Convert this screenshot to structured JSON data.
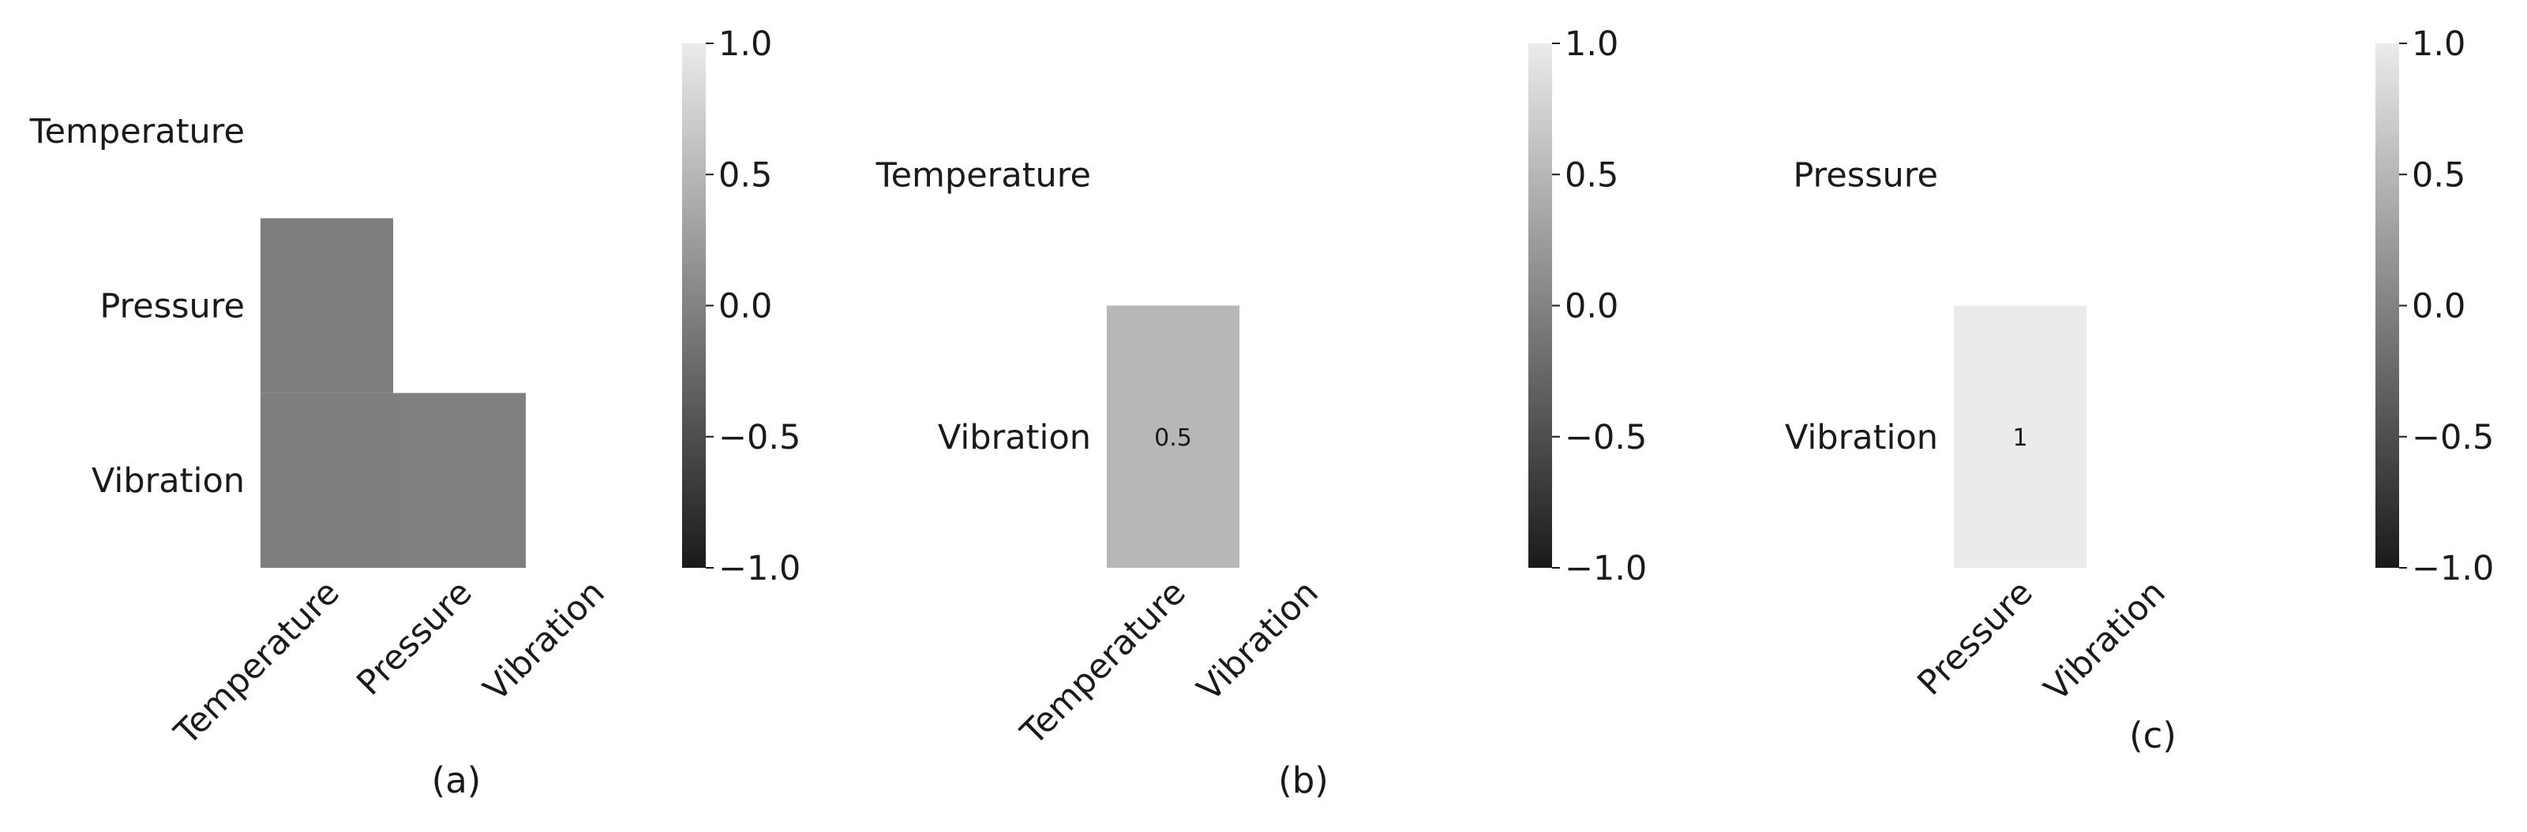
{
  "chart_data": [
    {
      "type": "heatmap",
      "caption": "(a)",
      "rows": [
        "Temperature",
        "Pressure",
        "Vibration"
      ],
      "columns": [
        "Temperature",
        "Pressure",
        "Vibration"
      ],
      "cells": [
        {
          "row": "Pressure",
          "col": "Temperature",
          "value": -0.04
        },
        {
          "row": "Vibration",
          "col": "Temperature",
          "value": -0.04
        },
        {
          "row": "Vibration",
          "col": "Pressure",
          "value": -0.03
        }
      ],
      "annotations": false,
      "colorbar": {
        "range": [
          -1.0,
          1.0
        ],
        "ticks": [
          "1.0",
          "0.5",
          "0.0",
          "−0.5",
          "−1.0"
        ],
        "colormap": "gray"
      }
    },
    {
      "type": "heatmap",
      "caption": "(b)",
      "rows": [
        "Temperature",
        "Vibration"
      ],
      "columns": [
        "Temperature",
        "Vibration"
      ],
      "cells": [
        {
          "row": "Vibration",
          "col": "Temperature",
          "value": 0.5,
          "label": "0.5"
        }
      ],
      "annotations": true,
      "colorbar": {
        "range": [
          -1.0,
          1.0
        ],
        "ticks": [
          "1.0",
          "0.5",
          "0.0",
          "−0.5",
          "−1.0"
        ],
        "colormap": "gray"
      }
    },
    {
      "type": "heatmap",
      "caption": "(c)",
      "rows": [
        "Pressure",
        "Vibration"
      ],
      "columns": [
        "Pressure",
        "Vibration"
      ],
      "cells": [
        {
          "row": "Vibration",
          "col": "Pressure",
          "value": 1.0,
          "label": "1"
        }
      ],
      "annotations": true,
      "colorbar": {
        "range": [
          -1.0,
          1.0
        ],
        "ticks": [
          "1.0",
          "0.5",
          "0.0",
          "−0.5",
          "−1.0"
        ],
        "colormap": "gray"
      }
    }
  ]
}
